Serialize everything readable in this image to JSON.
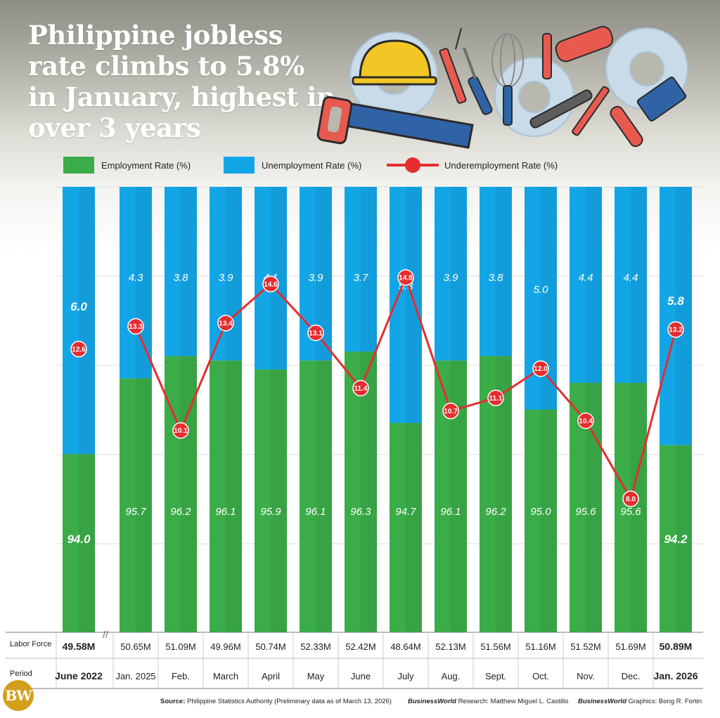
{
  "title": "Philippine jobless rate climbs to 5.8% in January, highest in over 3 years",
  "legend": {
    "employment": "Employment  Rate (%)",
    "unemployment": "Unemployment Rate (%)",
    "underemployment": "Underemployment Rate (%)"
  },
  "colors": {
    "employment": "#3aac48",
    "unemployment": "#13a6e6",
    "underemployment": "#e52d2f"
  },
  "row_labels": {
    "labor_force": "Labor Force",
    "period": "Period"
  },
  "footer": {
    "source_label": "Source:",
    "source_text": "Philippine Statistics Authority (Preliminary data as of March 13, 2026)",
    "research_label": "BusinessWorld",
    "research_text": " Research: Matthew Miguel L. Castillo",
    "graphics_label": "BusinessWorld",
    "graphics_text": " Graphics: Bong R. Fortin"
  },
  "logo": "BW",
  "axis_break": "//",
  "chart_data": {
    "type": "bar",
    "stacked": true,
    "categories": [
      "June 2022",
      "Jan. 2025",
      "Feb.",
      "March",
      "April",
      "May",
      "June",
      "July",
      "Aug.",
      "Sept.",
      "Oct.",
      "Nov.",
      "Dec.",
      "Jan. 2026"
    ],
    "labor_force": [
      "49.58M",
      "50.65M",
      "51.09M",
      "49.96M",
      "50.74M",
      "52.33M",
      "52.42M",
      "48.64M",
      "52.13M",
      "51.56M",
      "51.16M",
      "51.52M",
      "51.69M",
      "50.89M"
    ],
    "emphasized": [
      true,
      false,
      false,
      false,
      false,
      false,
      false,
      false,
      false,
      false,
      false,
      false,
      false,
      true
    ],
    "series": [
      {
        "name": "Employment  Rate (%)",
        "type": "bar",
        "values": [
          94.0,
          95.7,
          96.2,
          96.1,
          95.9,
          96.1,
          96.3,
          94.7,
          96.1,
          96.2,
          95.0,
          95.6,
          95.6,
          94.2
        ]
      },
      {
        "name": "Unemployment Rate (%)",
        "type": "bar",
        "values": [
          6.0,
          4.3,
          3.8,
          3.9,
          4.1,
          3.9,
          3.7,
          5.3,
          3.9,
          3.8,
          5.0,
          4.4,
          4.4,
          5.8
        ]
      },
      {
        "name": "Underemployment Rate (%)",
        "type": "line",
        "values": [
          12.6,
          13.3,
          10.1,
          13.4,
          14.6,
          13.1,
          11.4,
          14.8,
          10.7,
          11.1,
          12.0,
          10.4,
          8.0,
          13.2
        ]
      }
    ],
    "ylim": [
      90,
      100
    ],
    "grid": true,
    "legend_position": "top"
  }
}
